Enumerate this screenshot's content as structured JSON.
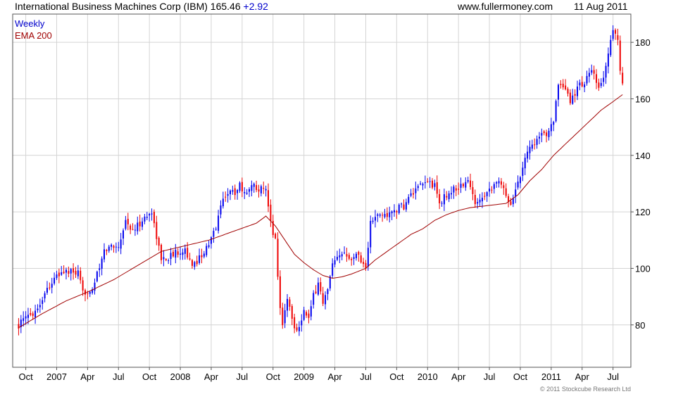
{
  "header": {
    "title": "International Business Machines Corp (IBM)",
    "price": "165.46",
    "change": "+2.92",
    "source": "www.fullermoney.com",
    "date": "11 Aug 2011"
  },
  "legend": {
    "period": "Weekly",
    "ema": "EMA 200"
  },
  "copyright": "© 2011 Stockcube Research Ltd",
  "colors": {
    "up": "#0000ee",
    "down": "#ee0000",
    "ema": "#a00000",
    "grid": "#d4d4d4"
  },
  "chart_data": {
    "type": "candlestick",
    "x_ticks": [
      {
        "label": "Oct",
        "week": 3
      },
      {
        "label": "2007",
        "week": 16
      },
      {
        "label": "Apr",
        "week": 29
      },
      {
        "label": "Jul",
        "week": 42
      },
      {
        "label": "Oct",
        "week": 55
      },
      {
        "label": "2008",
        "week": 68
      },
      {
        "label": "Apr",
        "week": 81
      },
      {
        "label": "Jul",
        "week": 94
      },
      {
        "label": "Oct",
        "week": 107
      },
      {
        "label": "2009",
        "week": 120
      },
      {
        "label": "Apr",
        "week": 133
      },
      {
        "label": "Jul",
        "week": 146
      },
      {
        "label": "Oct",
        "week": 159
      },
      {
        "label": "2010",
        "week": 172
      },
      {
        "label": "Apr",
        "week": 185
      },
      {
        "label": "Jul",
        "week": 198
      },
      {
        "label": "Oct",
        "week": 211
      },
      {
        "label": "2011",
        "week": 224
      },
      {
        "label": "Apr",
        "week": 237
      },
      {
        "label": "Jul",
        "week": 250
      }
    ],
    "y_ticks": [
      80,
      100,
      120,
      140,
      160,
      180
    ],
    "y_range": [
      65,
      190
    ],
    "week_range": [
      -2.5,
      257.5
    ],
    "closes_anchor": [
      [
        0,
        80
      ],
      [
        8,
        86
      ],
      [
        12,
        93
      ],
      [
        16,
        97
      ],
      [
        19,
        99
      ],
      [
        25,
        98
      ],
      [
        27,
        91
      ],
      [
        31,
        93
      ],
      [
        34,
        100
      ],
      [
        36,
        106
      ],
      [
        39,
        108
      ],
      [
        42,
        108
      ],
      [
        45,
        117
      ],
      [
        48,
        113
      ],
      [
        52,
        117
      ],
      [
        56,
        120
      ],
      [
        60,
        103
      ],
      [
        63,
        104
      ],
      [
        67,
        106
      ],
      [
        70,
        107
      ],
      [
        73,
        100
      ],
      [
        76,
        104
      ],
      [
        80,
        108
      ],
      [
        83,
        115
      ],
      [
        86,
        125
      ],
      [
        88,
        127
      ],
      [
        91,
        127
      ],
      [
        93,
        130
      ],
      [
        95,
        126
      ],
      [
        97,
        129
      ],
      [
        100,
        129
      ],
      [
        104,
        127
      ],
      [
        106,
        116
      ],
      [
        108,
        110
      ],
      [
        110,
        86
      ],
      [
        111,
        80
      ],
      [
        113,
        90
      ],
      [
        115,
        82
      ],
      [
        117,
        78
      ],
      [
        120,
        85
      ],
      [
        122,
        82
      ],
      [
        124,
        90
      ],
      [
        126,
        95
      ],
      [
        128,
        88
      ],
      [
        130,
        92
      ],
      [
        132,
        101
      ],
      [
        134,
        103
      ],
      [
        137,
        106
      ],
      [
        140,
        104
      ],
      [
        143,
        105
      ],
      [
        146,
        100
      ],
      [
        148,
        116
      ],
      [
        150,
        118
      ],
      [
        153,
        119
      ],
      [
        156,
        119
      ],
      [
        159,
        121
      ],
      [
        162,
        122
      ],
      [
        165,
        126
      ],
      [
        168,
        128
      ],
      [
        172,
        131
      ],
      [
        175,
        129
      ],
      [
        177,
        123
      ],
      [
        180,
        126
      ],
      [
        183,
        128
      ],
      [
        186,
        129
      ],
      [
        189,
        131
      ],
      [
        192,
        123
      ],
      [
        195,
        126
      ],
      [
        198,
        128
      ],
      [
        201,
        131
      ],
      [
        204,
        128
      ],
      [
        207,
        123
      ],
      [
        209,
        128
      ],
      [
        211,
        133
      ],
      [
        213,
        140
      ],
      [
        216,
        144
      ],
      [
        219,
        146
      ],
      [
        222,
        148
      ],
      [
        225,
        153
      ],
      [
        227,
        164
      ],
      [
        230,
        163
      ],
      [
        232,
        159
      ],
      [
        235,
        164
      ],
      [
        238,
        166
      ],
      [
        241,
        170
      ],
      [
        244,
        163
      ],
      [
        246,
        168
      ],
      [
        248,
        176
      ],
      [
        250,
        185
      ],
      [
        251,
        183
      ],
      [
        252,
        180
      ],
      [
        253,
        171
      ],
      [
        254,
        165.46
      ]
    ],
    "ema_anchor": [
      [
        0,
        79
      ],
      [
        10,
        84
      ],
      [
        20,
        88.5
      ],
      [
        30,
        92
      ],
      [
        40,
        96
      ],
      [
        50,
        101
      ],
      [
        60,
        106
      ],
      [
        70,
        108
      ],
      [
        80,
        110
      ],
      [
        90,
        113
      ],
      [
        100,
        116
      ],
      [
        104,
        118.5
      ],
      [
        108,
        115
      ],
      [
        112,
        110
      ],
      [
        116,
        105
      ],
      [
        120,
        102
      ],
      [
        124,
        99.5
      ],
      [
        128,
        97.5
      ],
      [
        132,
        96.5
      ],
      [
        136,
        97
      ],
      [
        140,
        98
      ],
      [
        146,
        100
      ],
      [
        150,
        103
      ],
      [
        155,
        106
      ],
      [
        160,
        109
      ],
      [
        165,
        112
      ],
      [
        170,
        114
      ],
      [
        175,
        117
      ],
      [
        180,
        119
      ],
      [
        185,
        120.5
      ],
      [
        190,
        121.5
      ],
      [
        195,
        122
      ],
      [
        200,
        122.5
      ],
      [
        205,
        123
      ],
      [
        210,
        126
      ],
      [
        215,
        131
      ],
      [
        220,
        135
      ],
      [
        225,
        140
      ],
      [
        230,
        144
      ],
      [
        235,
        148
      ],
      [
        240,
        152
      ],
      [
        245,
        156
      ],
      [
        250,
        159
      ],
      [
        254,
        161.5
      ]
    ]
  }
}
